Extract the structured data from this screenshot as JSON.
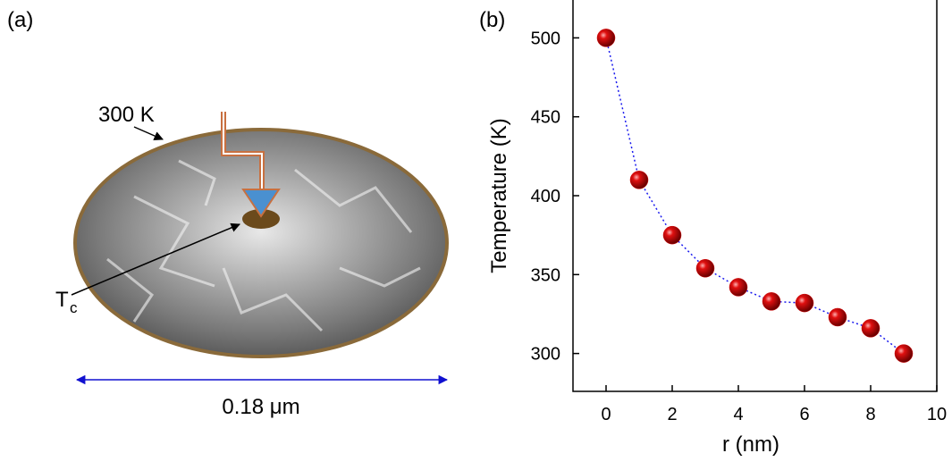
{
  "panel_a": {
    "label": "(a)",
    "edge_label": "300 K",
    "center_label": "T",
    "center_label_sub": "c",
    "scale_label": "0.18 μm"
  },
  "chart_data": {
    "type": "scatter",
    "panel_label": "(b)",
    "x_label": "r (nm)",
    "y_label": "Temperature (K)",
    "x": [
      0,
      1,
      2,
      3,
      4,
      5,
      6,
      7,
      8,
      9
    ],
    "series": [
      {
        "color": "#d40000",
        "line_color": "#1a1aee",
        "values": [
          500,
          410,
          375,
          354,
          342,
          333,
          332,
          323,
          316,
          300
        ]
      }
    ],
    "xlim": [
      -1,
      10
    ],
    "xticks": [
      0,
      2,
      4,
      6,
      8,
      10
    ],
    "ylim": [
      276,
      524
    ],
    "yticks": [
      300,
      350,
      400,
      450,
      500
    ]
  }
}
